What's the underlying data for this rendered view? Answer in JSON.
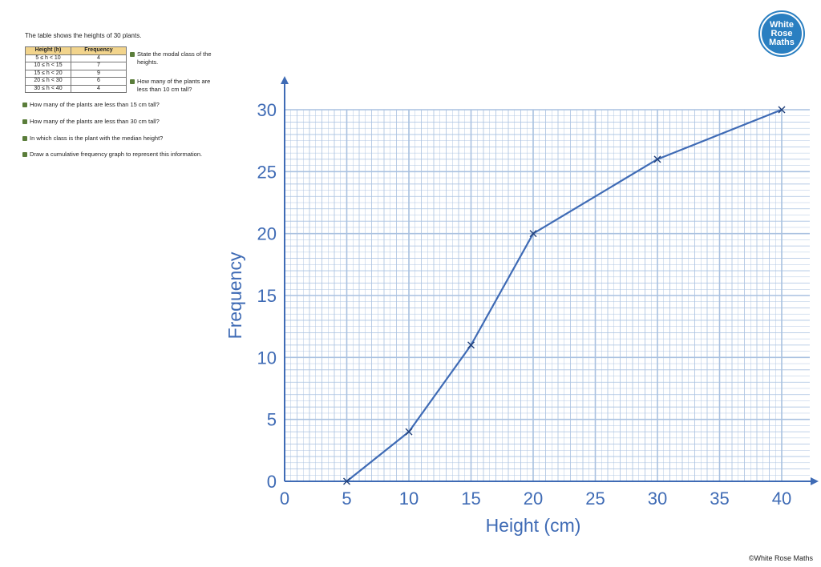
{
  "worksheet": {
    "intro": "The table shows the heights of 30 plants.",
    "table_headers": [
      "Height (h)",
      "Frequency"
    ],
    "table_rows": [
      [
        "5 ≤ h < 10",
        "4"
      ],
      [
        "10 ≤ h < 15",
        "7"
      ],
      [
        "15 ≤ h < 20",
        "9"
      ],
      [
        "20 ≤ h < 30",
        "6"
      ],
      [
        "30 ≤ h < 40",
        "4"
      ]
    ],
    "side_questions": [
      "State the modal class of the heights.",
      "How many of the plants are less than 10 cm tall?"
    ],
    "questions": [
      "How many of the plants are less than 15 cm tall?",
      "How many of the plants are less than 30 cm tall?",
      "In which class is the plant with the median height?",
      "Draw a cumulative frequency graph to represent this information."
    ]
  },
  "logo": {
    "lines": [
      "White",
      "Rose",
      "Maths"
    ]
  },
  "copyright": "©White Rose Maths",
  "chart_data": {
    "type": "line",
    "xlabel": "Height (cm)",
    "ylabel": "Frequency",
    "xlim": [
      0,
      40
    ],
    "ylim": [
      0,
      30
    ],
    "x_ticks": [
      0,
      5,
      10,
      15,
      20,
      25,
      30,
      35,
      40
    ],
    "y_ticks": [
      0,
      5,
      10,
      15,
      20,
      25,
      30
    ],
    "grid": true,
    "line_color": "#3f6bb5",
    "grid_color": "#a9c1e0",
    "points": [
      [
        5,
        0
      ],
      [
        10,
        4
      ],
      [
        15,
        11
      ],
      [
        20,
        20
      ],
      [
        30,
        26
      ],
      [
        40,
        30
      ]
    ]
  }
}
